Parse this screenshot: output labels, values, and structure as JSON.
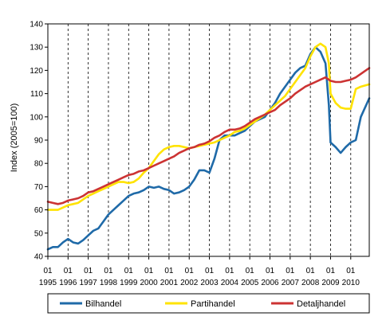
{
  "chart_data": {
    "type": "line",
    "title": "",
    "xlabel": "",
    "ylabel": "Index (2005=100)",
    "ylim": [
      40,
      140
    ],
    "yticks": [
      40,
      50,
      60,
      70,
      80,
      90,
      100,
      110,
      120,
      130,
      140
    ],
    "xlim": [
      1995.0,
      2010.917
    ],
    "grid": "vertical dashed lines at each year",
    "legend_position": "bottom",
    "x_tick_labels": [
      {
        "month": "01",
        "year": "1995"
      },
      {
        "month": "01",
        "year": "1996"
      },
      {
        "month": "01",
        "year": "1997"
      },
      {
        "month": "01",
        "year": "1998"
      },
      {
        "month": "01",
        "year": "1999"
      },
      {
        "month": "01",
        "year": "2000"
      },
      {
        "month": "01",
        "year": "2001"
      },
      {
        "month": "01",
        "year": "2002"
      },
      {
        "month": "01",
        "year": "2003"
      },
      {
        "month": "01",
        "year": "2004"
      },
      {
        "month": "01",
        "year": "2005"
      },
      {
        "month": "01",
        "year": "2006"
      },
      {
        "month": "01",
        "year": "2007"
      },
      {
        "month": "01",
        "year": "2008"
      },
      {
        "month": "01",
        "year": "2009"
      },
      {
        "month": "01",
        "year": "2010"
      }
    ],
    "series": [
      {
        "name": "Bilhandel",
        "color": "#1f6aa8",
        "points": [
          [
            1995.0,
            43
          ],
          [
            1995.25,
            44
          ],
          [
            1995.5,
            44
          ],
          [
            1995.75,
            46
          ],
          [
            1996.0,
            47.5
          ],
          [
            1996.25,
            46
          ],
          [
            1996.5,
            45.5
          ],
          [
            1996.75,
            47
          ],
          [
            1997.0,
            49
          ],
          [
            1997.25,
            51
          ],
          [
            1997.5,
            52
          ],
          [
            1997.75,
            55
          ],
          [
            1998.0,
            58
          ],
          [
            1998.25,
            60
          ],
          [
            1998.5,
            62
          ],
          [
            1998.75,
            64
          ],
          [
            1999.0,
            66
          ],
          [
            1999.25,
            67
          ],
          [
            1999.5,
            67.5
          ],
          [
            1999.75,
            68.5
          ],
          [
            2000.0,
            70
          ],
          [
            2000.25,
            69.5
          ],
          [
            2000.5,
            70
          ],
          [
            2000.75,
            69
          ],
          [
            2001.0,
            68.5
          ],
          [
            2001.25,
            67
          ],
          [
            2001.5,
            67.5
          ],
          [
            2001.75,
            68.5
          ],
          [
            2002.0,
            70
          ],
          [
            2002.25,
            73
          ],
          [
            2002.5,
            77
          ],
          [
            2002.75,
            77
          ],
          [
            2003.0,
            76
          ],
          [
            2003.25,
            82
          ],
          [
            2003.5,
            90
          ],
          [
            2003.75,
            92
          ],
          [
            2004.0,
            92
          ],
          [
            2004.25,
            92
          ],
          [
            2004.5,
            93
          ],
          [
            2004.75,
            94
          ],
          [
            2005.0,
            96
          ],
          [
            2005.25,
            98
          ],
          [
            2005.5,
            99
          ],
          [
            2005.75,
            100
          ],
          [
            2006.0,
            103
          ],
          [
            2006.25,
            106
          ],
          [
            2006.5,
            110
          ],
          [
            2006.75,
            113
          ],
          [
            2007.0,
            116
          ],
          [
            2007.25,
            119
          ],
          [
            2007.5,
            121
          ],
          [
            2007.75,
            122
          ],
          [
            2008.0,
            127
          ],
          [
            2008.25,
            130
          ],
          [
            2008.5,
            128
          ],
          [
            2008.75,
            123
          ],
          [
            2008.917,
            105
          ],
          [
            2009.0,
            89
          ],
          [
            2009.25,
            87
          ],
          [
            2009.5,
            84.5
          ],
          [
            2009.75,
            87
          ],
          [
            2010.0,
            89
          ],
          [
            2010.25,
            90
          ],
          [
            2010.5,
            100
          ],
          [
            2010.917,
            108
          ]
        ]
      },
      {
        "name": "Partihandel",
        "color": "#ffe300",
        "points": [
          [
            1995.0,
            60
          ],
          [
            1995.25,
            60
          ],
          [
            1995.5,
            60
          ],
          [
            1995.75,
            61
          ],
          [
            1996.0,
            62
          ],
          [
            1996.25,
            62.5
          ],
          [
            1996.5,
            63
          ],
          [
            1996.75,
            64.5
          ],
          [
            1997.0,
            66
          ],
          [
            1997.25,
            67
          ],
          [
            1997.5,
            68
          ],
          [
            1997.75,
            69
          ],
          [
            1998.0,
            70
          ],
          [
            1998.25,
            71
          ],
          [
            1998.5,
            72
          ],
          [
            1998.75,
            72
          ],
          [
            1999.0,
            71.5
          ],
          [
            1999.25,
            72
          ],
          [
            1999.5,
            73.5
          ],
          [
            1999.75,
            76
          ],
          [
            2000.0,
            78
          ],
          [
            2000.25,
            81
          ],
          [
            2000.5,
            84
          ],
          [
            2000.75,
            86
          ],
          [
            2001.0,
            87
          ],
          [
            2001.25,
            87.5
          ],
          [
            2001.5,
            87.5
          ],
          [
            2001.75,
            87
          ],
          [
            2002.0,
            86.5
          ],
          [
            2002.25,
            87
          ],
          [
            2002.5,
            87.5
          ],
          [
            2002.75,
            88
          ],
          [
            2003.0,
            88.5
          ],
          [
            2003.25,
            89
          ],
          [
            2003.5,
            90
          ],
          [
            2003.75,
            91
          ],
          [
            2004.0,
            92
          ],
          [
            2004.25,
            93.5
          ],
          [
            2004.5,
            94
          ],
          [
            2004.75,
            95
          ],
          [
            2005.0,
            96.5
          ],
          [
            2005.25,
            98
          ],
          [
            2005.5,
            99.5
          ],
          [
            2005.75,
            101
          ],
          [
            2006.0,
            103
          ],
          [
            2006.25,
            105
          ],
          [
            2006.5,
            107
          ],
          [
            2006.75,
            109
          ],
          [
            2007.0,
            112
          ],
          [
            2007.25,
            115
          ],
          [
            2007.5,
            118
          ],
          [
            2007.75,
            121
          ],
          [
            2008.0,
            126
          ],
          [
            2008.25,
            130
          ],
          [
            2008.5,
            131.5
          ],
          [
            2008.75,
            130
          ],
          [
            2008.917,
            123
          ],
          [
            2009.0,
            110
          ],
          [
            2009.25,
            106
          ],
          [
            2009.5,
            104
          ],
          [
            2009.75,
            103.5
          ],
          [
            2010.0,
            103.5
          ],
          [
            2010.25,
            112
          ],
          [
            2010.5,
            113
          ],
          [
            2010.917,
            114
          ]
        ]
      },
      {
        "name": "Detaljhandel",
        "color": "#cc3333",
        "points": [
          [
            1995.0,
            63.5
          ],
          [
            1995.25,
            63
          ],
          [
            1995.5,
            62.5
          ],
          [
            1995.75,
            63
          ],
          [
            1996.0,
            64
          ],
          [
            1996.25,
            64.5
          ],
          [
            1996.5,
            65
          ],
          [
            1996.75,
            66
          ],
          [
            1997.0,
            67.5
          ],
          [
            1997.25,
            68
          ],
          [
            1997.5,
            69
          ],
          [
            1997.75,
            70
          ],
          [
            1998.0,
            71
          ],
          [
            1998.25,
            72
          ],
          [
            1998.5,
            73
          ],
          [
            1998.75,
            74
          ],
          [
            1999.0,
            75
          ],
          [
            1999.25,
            75.5
          ],
          [
            1999.5,
            76.5
          ],
          [
            1999.75,
            77
          ],
          [
            2000.0,
            78
          ],
          [
            2000.25,
            79
          ],
          [
            2000.5,
            80
          ],
          [
            2000.75,
            81
          ],
          [
            2001.0,
            82
          ],
          [
            2001.25,
            83
          ],
          [
            2001.5,
            84.5
          ],
          [
            2001.75,
            85.5
          ],
          [
            2002.0,
            86.5
          ],
          [
            2002.25,
            87
          ],
          [
            2002.5,
            88
          ],
          [
            2002.75,
            88.5
          ],
          [
            2003.0,
            89.5
          ],
          [
            2003.25,
            91
          ],
          [
            2003.5,
            92
          ],
          [
            2003.75,
            93.5
          ],
          [
            2004.0,
            94.5
          ],
          [
            2004.25,
            94.5
          ],
          [
            2004.5,
            95
          ],
          [
            2004.75,
            96
          ],
          [
            2005.0,
            97.5
          ],
          [
            2005.25,
            99
          ],
          [
            2005.5,
            100
          ],
          [
            2005.75,
            101
          ],
          [
            2006.0,
            102
          ],
          [
            2006.25,
            103
          ],
          [
            2006.5,
            105
          ],
          [
            2006.75,
            106.5
          ],
          [
            2007.0,
            108
          ],
          [
            2007.25,
            110
          ],
          [
            2007.5,
            111.5
          ],
          [
            2007.75,
            113
          ],
          [
            2008.0,
            114
          ],
          [
            2008.25,
            115
          ],
          [
            2008.5,
            116
          ],
          [
            2008.75,
            117
          ],
          [
            2009.0,
            115.5
          ],
          [
            2009.25,
            115
          ],
          [
            2009.5,
            115
          ],
          [
            2009.75,
            115.5
          ],
          [
            2010.0,
            116
          ],
          [
            2010.25,
            117
          ],
          [
            2010.5,
            118.5
          ],
          [
            2010.917,
            121
          ]
        ]
      }
    ]
  }
}
